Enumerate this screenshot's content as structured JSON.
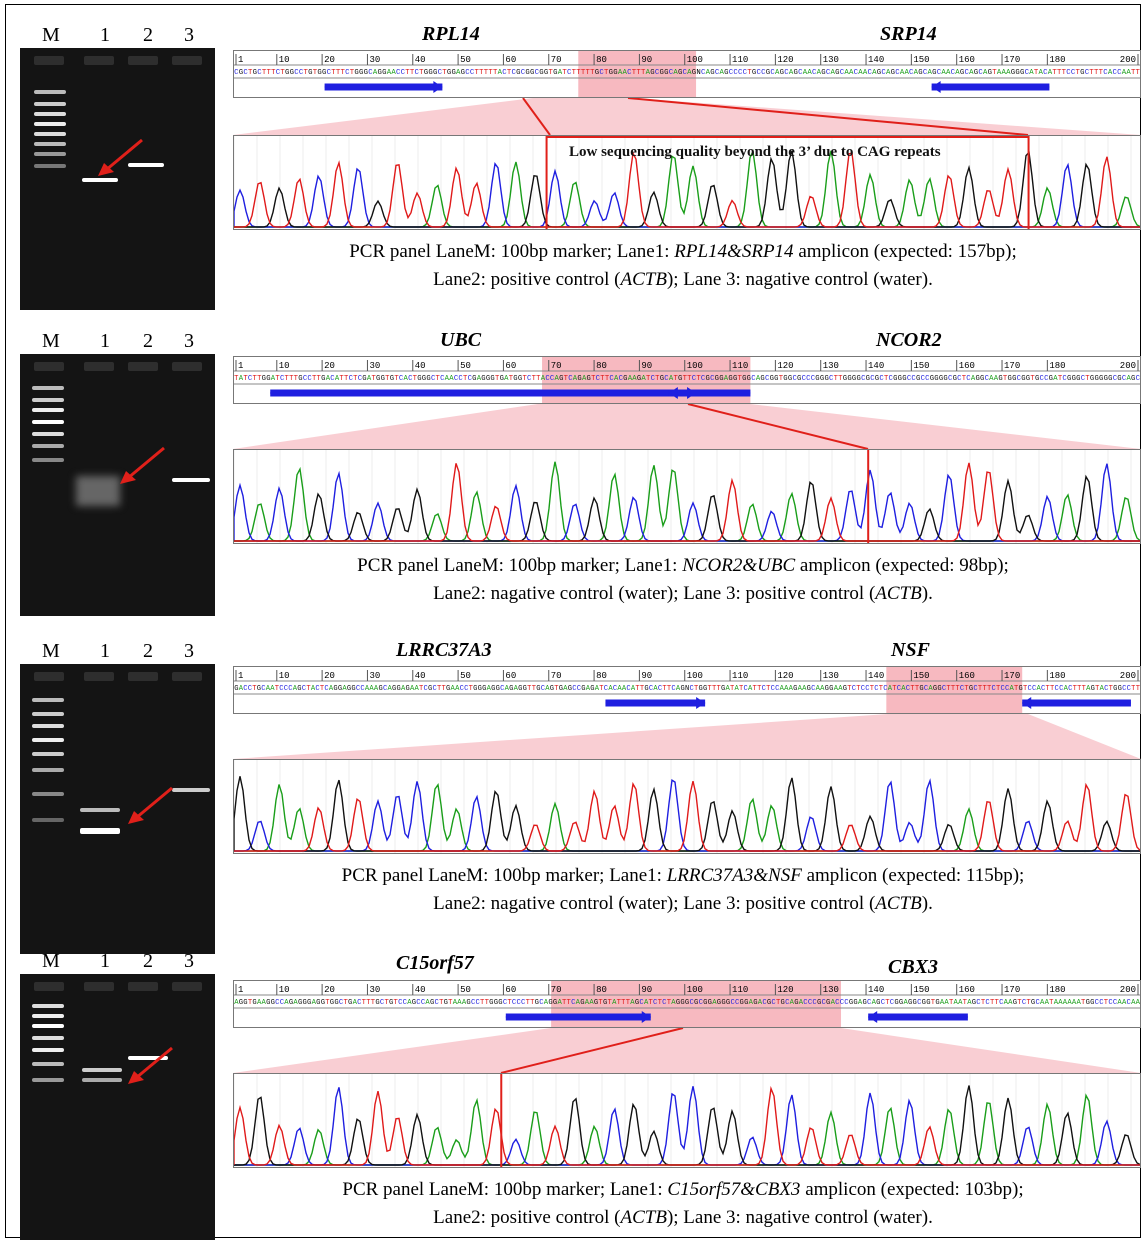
{
  "colors": {
    "bases": {
      "A": "#1a9e1a",
      "C": "#1f1fe0",
      "G": "#111111",
      "T": "#e01a1a"
    },
    "highlight": "#f7b9c0",
    "primer": "#1f1fe0",
    "marker": "#e0201a"
  },
  "panels": [
    {
      "lanes": [
        "M",
        "1",
        "2",
        "3"
      ],
      "gene_left": "RPL14",
      "gene_right": "SRP14",
      "ruler": [
        "1",
        "10",
        "20",
        "30",
        "40",
        "50",
        "60",
        "70",
        "80",
        "90",
        "100",
        "110",
        "120",
        "130",
        "140",
        "150",
        "160",
        "170",
        "180",
        "200"
      ],
      "sequence": "CGCTGCTTTCTGGCCTGTGGCTTTCTGGGCAGGAACCTTCTGGGCTGGAGCCTTTTTACTCGCGGCGGTGATCTTTTTGCTGGAACTTTAGCGGCAGCAGNCAGCAGCCCCTGCCGCAGCAGCAACAGCAGCAACAACAGCAGCAACAGCAGCAACAGCAGCAGTAAAGGGCATACATTTCCTGCTTTCACCAATT",
      "note": "Low sequencing quality beyond the 3’ due to CAG repeats",
      "caption": {
        "p1": "PCR panel LaneM: 100bp marker; Lane1: ",
        "g1": "RPL14&SRP14",
        "p2": " amplicon (expected: 157bp);",
        "p3": "Lane2: positive control (",
        "g2": "ACTB",
        "p4": "); Lane 3: nagative control (water)."
      }
    },
    {
      "lanes": [
        "M",
        "1",
        "2",
        "3"
      ],
      "gene_left": "UBC",
      "gene_right": "NCOR2",
      "ruler": [
        "1",
        "10",
        "20",
        "30",
        "40",
        "50",
        "60",
        "70",
        "80",
        "90",
        "100",
        "110",
        "120",
        "130",
        "140",
        "150",
        "160",
        "170",
        "180",
        "200"
      ],
      "sequence": "TATCTTGGATCTTTGCCTTGACATTCTCGATGGTGTCACTGGGCTCAACCTCGAGGGTGATGGTCTTACCAGTCAGAGTCTTCACGAAGATCTGCATGTTCTCGCGGAGGTGGCAGCGGTGGCGCCCGGGCTTGGGGCGCGCTCGGGCCGCCGGGGCGCTCAGGCAAGTGGCGGTGCCGATCGGGCTGGGGGCGCAGC",
      "note": "",
      "caption": {
        "p1": "PCR panel LaneM: 100bp marker; Lane1: ",
        "g1": "NCOR2&UBC",
        "p2": " amplicon (expected: 98bp);",
        "p3": "Lane2: nagative control (water); Lane 3: positive control (",
        "g2": "ACTB",
        "p4": ")."
      }
    },
    {
      "lanes": [
        "M",
        "1",
        "2",
        "3"
      ],
      "gene_left": "LRRC37A3",
      "gene_right": "NSF",
      "ruler": [
        "1",
        "10",
        "20",
        "30",
        "40",
        "50",
        "60",
        "70",
        "80",
        "90",
        "100",
        "110",
        "120",
        "130",
        "140",
        "150",
        "160",
        "170",
        "180",
        "200"
      ],
      "sequence": "GACCTGCAATCCCAGCTACTCAGGAGGCCAAAGCAGGAGAATCGCTTGAACCTGGGAGGCAGAGGTTGCAGTGAGCCGAGATCACAACATTGCACTTCAGNCTGGTTTGATATCATTCTCCAAAGAAGCAAGGAAGTCTCCTCTCATCACTTGCAGGCTTTCTGCTTTCTCCATGTCCACTTCCACTTTAGTACTGGCCTT",
      "note": "",
      "caption": {
        "p1": "PCR panel LaneM: 100bp marker; Lane1: ",
        "g1": "LRRC37A3&NSF",
        "p2": " amplicon (expected: 115bp);",
        "p3": "Lane2: nagative control (water); Lane 3: positive control (",
        "g2": "ACTB",
        "p4": ")."
      }
    },
    {
      "lanes": [
        "M",
        "1",
        "2",
        "3"
      ],
      "gene_left": "C15orf57",
      "gene_right": "CBX3",
      "ruler": [
        "1",
        "10",
        "20",
        "30",
        "40",
        "50",
        "60",
        "70",
        "80",
        "90",
        "100",
        "110",
        "120",
        "130",
        "140",
        "150",
        "160",
        "170",
        "180",
        "200"
      ],
      "sequence": "AGGTGAAGGCCAGAGGGAGGTGGCTGACTTTGCTGTCCAGCCAGCTGTAAAGCCTTGGGCTCCCTTGCAGGATTCAGAAGTGTATTTAGCATCTCTAGGGCGCGGAGGGCCGGAGACGCTGCAGACCCGCGACCCGGAGCAGCTCGGAGGCGGTGAATAATAGCTCTTCAAGTCTGCAATAAAAAATGGCCTCCAACAA",
      "note": "",
      "caption": {
        "p1": "PCR panel LaneM: 100bp marker; Lane1: ",
        "g1": "C15orf57&CBX3",
        "p2": " amplicon (expected: 103bp);",
        "p3": "Lane2: positive control (",
        "g2": "ACTB",
        "p4": "); Lane 3: nagative control (water)."
      }
    }
  ]
}
